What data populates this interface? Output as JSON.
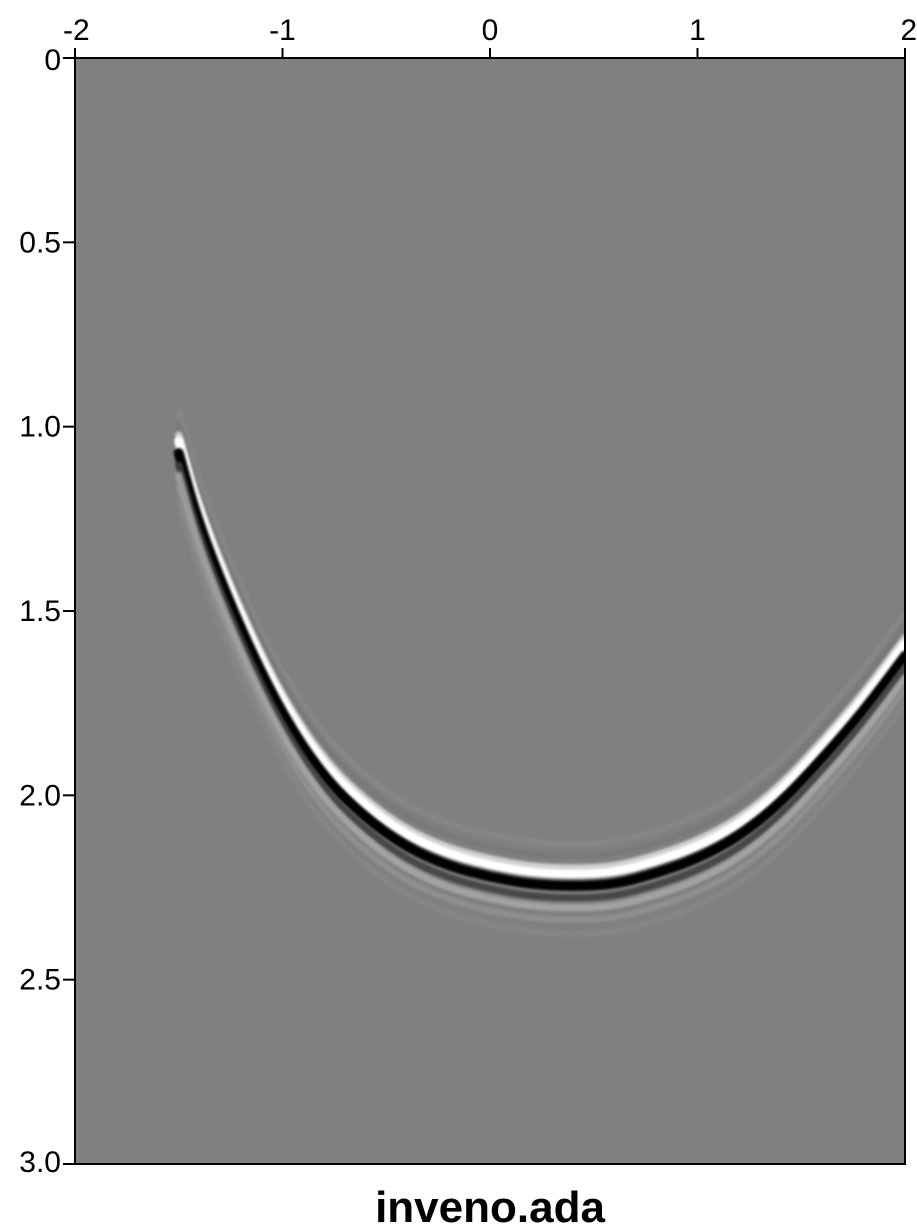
{
  "chart_data": {
    "type": "heatmap",
    "title": "inveno.ada",
    "xlabel": "",
    "ylabel": "",
    "xlim": [
      -2,
      2
    ],
    "ylim": [
      0,
      3.0
    ],
    "y_reversed": true,
    "x_axis_position": "top",
    "x_ticks": [
      -2,
      -1,
      0,
      1,
      2
    ],
    "x_tick_labels": [
      "-2",
      "-1",
      "0",
      "1",
      "2"
    ],
    "y_ticks": [
      0,
      0.5,
      1.0,
      1.5,
      2.0,
      2.5,
      3.0
    ],
    "y_tick_labels": [
      "0",
      "0.5",
      "1.0",
      "1.5",
      "2.0",
      "2.5",
      "3.0"
    ],
    "colormap": "grayscale",
    "background_color": "#808080",
    "event": {
      "description_shape": "curved reflection event (black/white wavelet)",
      "points": [
        {
          "x": -1.5,
          "y": 1.05
        },
        {
          "x": -1.4,
          "y": 1.25
        },
        {
          "x": -1.2,
          "y": 1.53
        },
        {
          "x": -1.0,
          "y": 1.76
        },
        {
          "x": -0.8,
          "y": 1.93
        },
        {
          "x": -0.6,
          "y": 2.04
        },
        {
          "x": -0.4,
          "y": 2.12
        },
        {
          "x": -0.2,
          "y": 2.17
        },
        {
          "x": 0.0,
          "y": 2.2
        },
        {
          "x": 0.2,
          "y": 2.22
        },
        {
          "x": 0.4,
          "y": 2.225
        },
        {
          "x": 0.6,
          "y": 2.22
        },
        {
          "x": 0.8,
          "y": 2.19
        },
        {
          "x": 1.0,
          "y": 2.15
        },
        {
          "x": 1.2,
          "y": 2.09
        },
        {
          "x": 1.4,
          "y": 2.0
        },
        {
          "x": 1.6,
          "y": 1.88
        },
        {
          "x": 1.8,
          "y": 1.75
        },
        {
          "x": 2.0,
          "y": 1.6
        }
      ]
    }
  }
}
